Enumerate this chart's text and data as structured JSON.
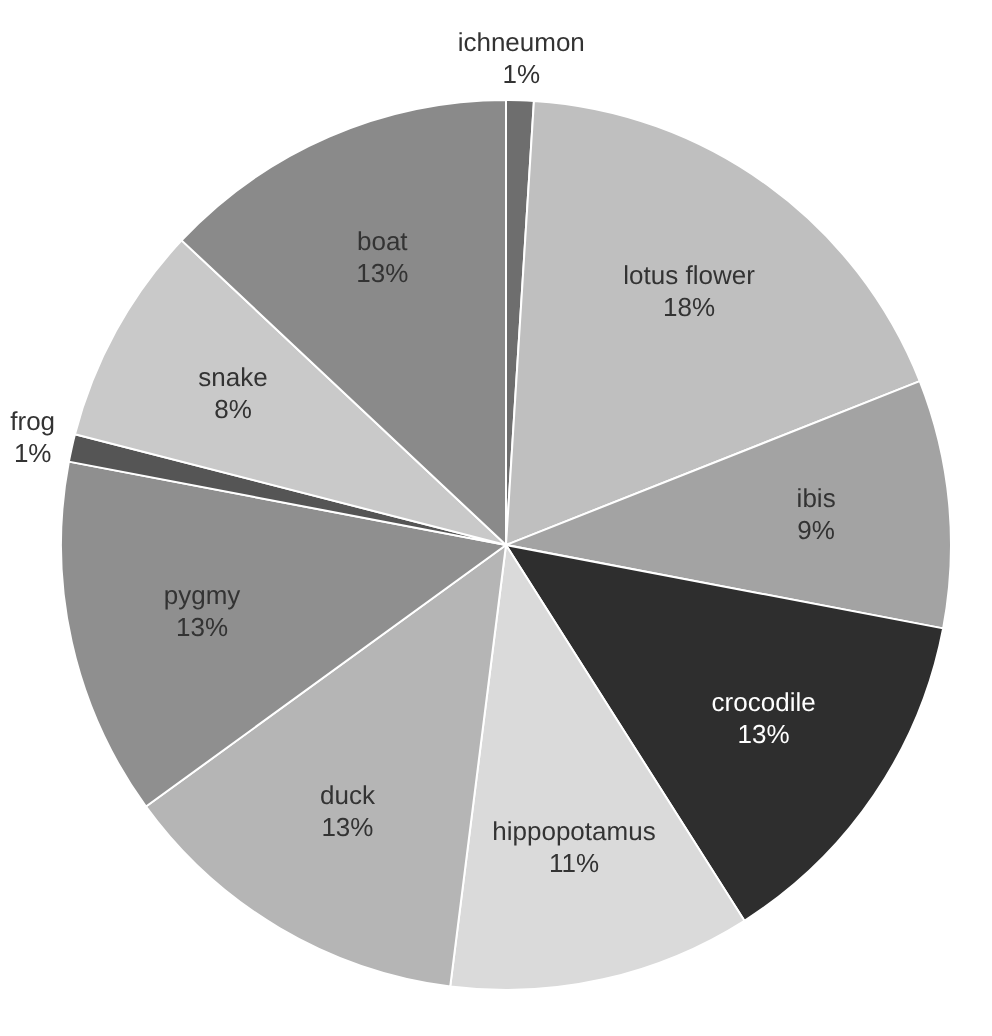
{
  "chart_data": {
    "type": "pie",
    "categories": [
      "ichneumon",
      "lotus flower",
      "ibis",
      "crocodile",
      "hippopotamus",
      "duck",
      "pygmy",
      "frog",
      "snake",
      "boat"
    ],
    "values": [
      1,
      18,
      9,
      13,
      11,
      13,
      13,
      1,
      8,
      13
    ],
    "value_labels": [
      "1%",
      "18%",
      "9%",
      "13%",
      "11%",
      "13%",
      "13%",
      "1%",
      "8%",
      "13%"
    ],
    "colors": [
      "#6e6e6e",
      "#bfbfbf",
      "#a3a3a3",
      "#2e2e2e",
      "#dadada",
      "#b5b5b5",
      "#8f8f8f",
      "#555555",
      "#c9c9c9",
      "#8a8a8a"
    ],
    "legend": false
  }
}
